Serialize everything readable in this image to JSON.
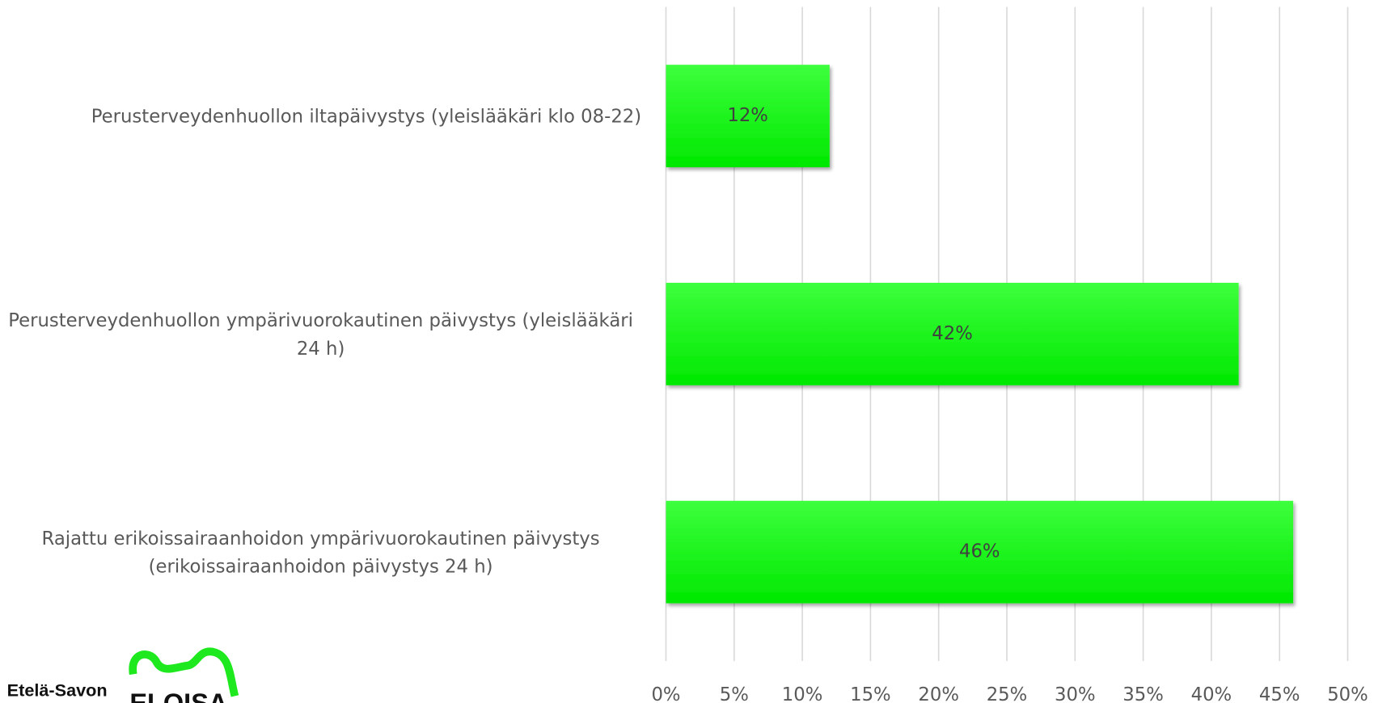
{
  "chart_data": {
    "type": "bar",
    "orientation": "horizontal",
    "categories": [
      "Perusterveydenhuollon iltapäivystys (yleislääkäri klo 08-22)",
      "Perusterveydenhuollon ympärivuorokautinen päivystys (yleislääkäri 24 h)",
      "Rajattu erikoissairaanhoidon ympärivuorokautinen päivystys (erikoissairaanhoidon päivystys 24 h)"
    ],
    "values": [
      12,
      42,
      46
    ],
    "value_labels": [
      "12%",
      "42%",
      "46%"
    ],
    "color": "#1ef51e",
    "xlim": [
      0,
      50
    ],
    "xticks": [
      {
        "value": 0,
        "label": "0%"
      },
      {
        "value": 5,
        "label": "5%"
      },
      {
        "value": 10,
        "label": "10%"
      },
      {
        "value": 15,
        "label": "15%"
      },
      {
        "value": 20,
        "label": "20%"
      },
      {
        "value": 25,
        "label": "25%"
      },
      {
        "value": 30,
        "label": "30%"
      },
      {
        "value": 35,
        "label": "35%"
      },
      {
        "value": 40,
        "label": "40%"
      },
      {
        "value": 45,
        "label": "45%"
      },
      {
        "value": 50,
        "label": "50%"
      }
    ],
    "grid": true
  },
  "logo": {
    "text": "Etelä-Savon",
    "brand": "ELOISA"
  }
}
